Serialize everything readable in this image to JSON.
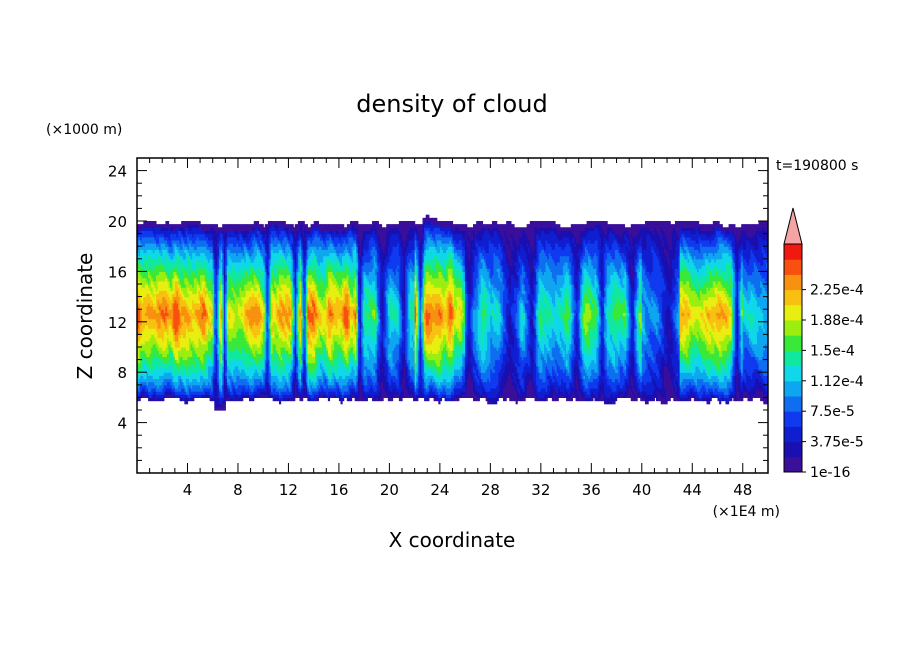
{
  "chart_data": {
    "type": "heatmap",
    "title": "density of cloud",
    "xlabel": "X coordinate",
    "ylabel": "Z coordinate",
    "x_unit": "(×1E4 m)",
    "y_unit": "(×1000 m)",
    "time_label": "t=190800 s",
    "xlim": [
      0,
      50
    ],
    "ylim": [
      0,
      25
    ],
    "x_ticks": [
      4,
      8,
      12,
      16,
      20,
      24,
      28,
      32,
      36,
      40,
      44,
      48
    ],
    "y_ticks": [
      4,
      8,
      12,
      16,
      20,
      24
    ],
    "cloud_layer": {
      "base_km": 5.5,
      "top_km": 20,
      "core_km": 12.5
    },
    "colorbar": {
      "labels": [
        "1e-16",
        "3.75e-5",
        "7.5e-5",
        "1.12e-4",
        "1.5e-4",
        "1.88e-4",
        "2.25e-4"
      ],
      "levels": [
        1e-16,
        1.875e-05,
        3.75e-05,
        5.625e-05,
        7.5e-05,
        9.375e-05,
        0.0001125,
        0.00013125,
        0.00015,
        0.00016875,
        0.0001875,
        0.00020625,
        0.000225,
        0.00024375
      ],
      "colors": [
        "#3a0f9a",
        "#1a0fb0",
        "#0f1fd0",
        "#0f3af0",
        "#0f6ef0",
        "#0fa6f0",
        "#0fd8e8",
        "#10e8a0",
        "#3ae83a",
        "#9aee10",
        "#e8ee10",
        "#f8c010",
        "#f89010",
        "#f85010",
        "#f0180f"
      ],
      "overflow_color": "#f4a4a4"
    }
  }
}
